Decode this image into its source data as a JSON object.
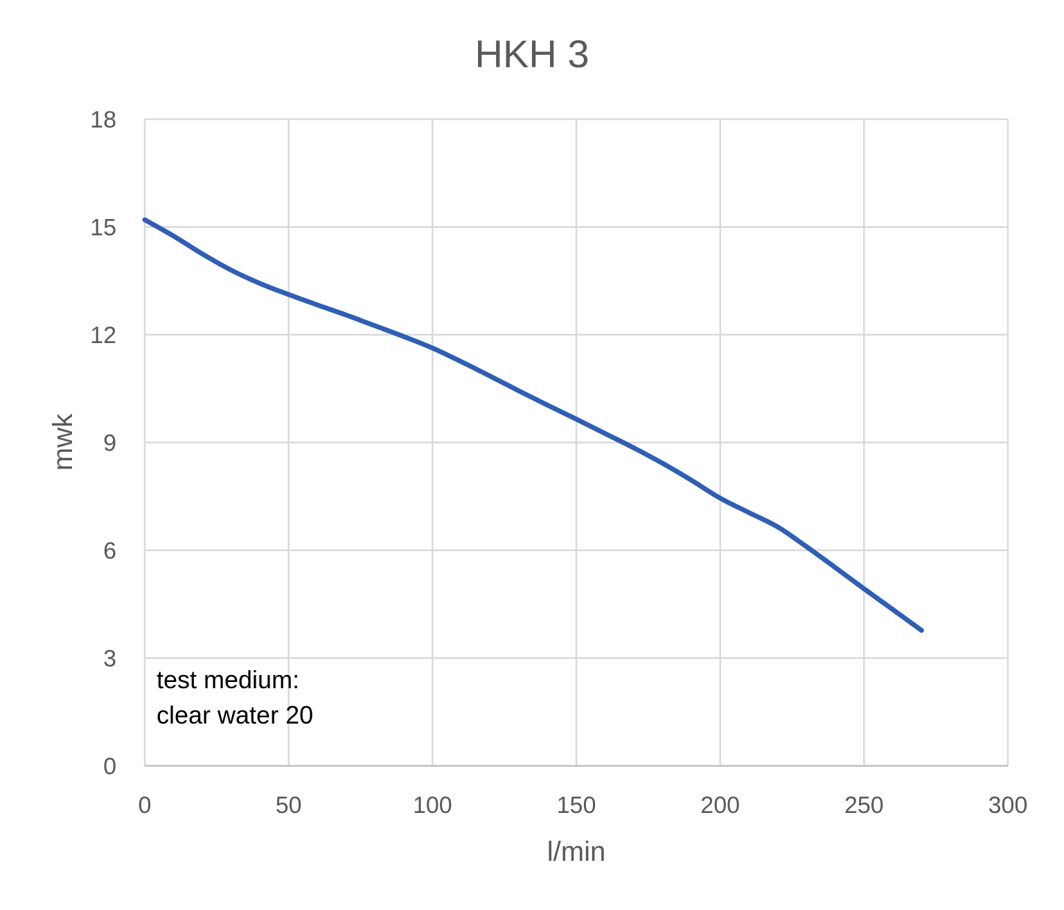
{
  "chart_data": {
    "type": "line",
    "title": "HKH 3",
    "xlabel": "l/min",
    "ylabel": "mwk",
    "xlim": [
      0,
      300
    ],
    "ylim": [
      0,
      18
    ],
    "x_ticks": [
      0,
      50,
      100,
      150,
      200,
      250,
      300
    ],
    "y_ticks": [
      0,
      3,
      6,
      9,
      12,
      15,
      18
    ],
    "grid": true,
    "legend": "none",
    "annotation": [
      "test medium:",
      "clear water 20"
    ],
    "series": [
      {
        "color": "#2F5FB4",
        "x": [
          0,
          10,
          20,
          30,
          40,
          50,
          60,
          70,
          80,
          90,
          100,
          110,
          120,
          130,
          140,
          150,
          160,
          170,
          180,
          190,
          200,
          210,
          220,
          230,
          240,
          250,
          260,
          270
        ],
        "y": [
          15.2,
          14.75,
          14.25,
          13.8,
          13.43,
          13.12,
          12.83,
          12.55,
          12.25,
          11.95,
          11.63,
          11.25,
          10.85,
          10.44,
          10.04,
          9.65,
          9.25,
          8.85,
          8.42,
          7.95,
          7.45,
          7.05,
          6.65,
          6.1,
          5.52,
          4.93,
          4.35,
          3.77
        ]
      }
    ]
  }
}
